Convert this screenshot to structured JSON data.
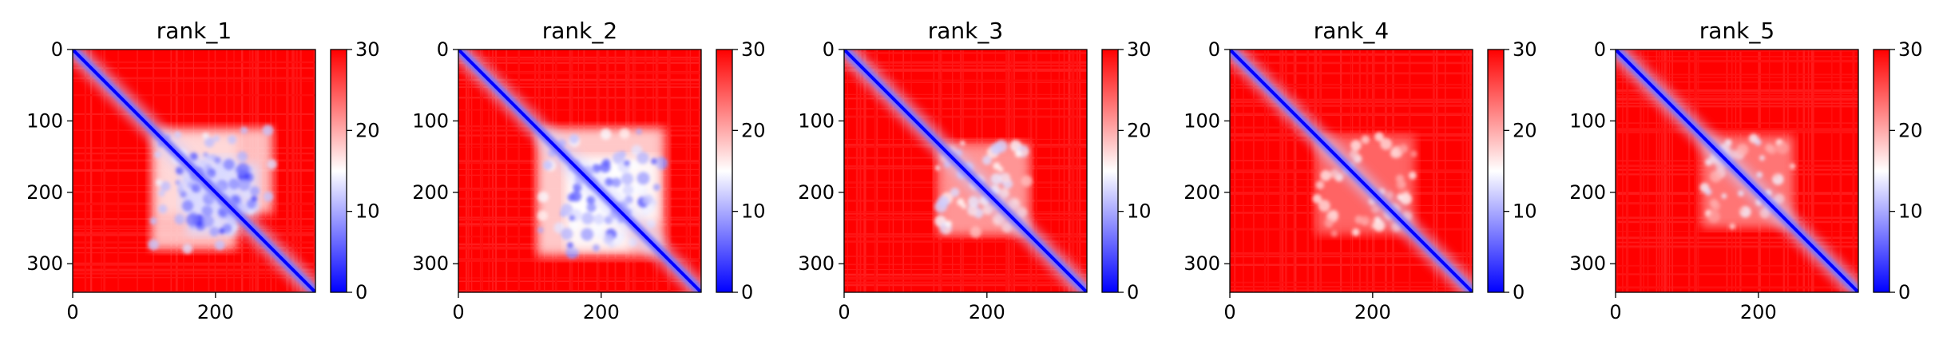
{
  "chart_data": [
    {
      "type": "heatmap",
      "title": "rank_1",
      "xlabel": "",
      "ylabel": "",
      "xlim": [
        0,
        340
      ],
      "ylim": [
        340,
        0
      ],
      "xticks": [
        0,
        200
      ],
      "yticks": [
        0,
        100,
        200,
        300
      ],
      "colorbar": {
        "min": 0,
        "max": 30,
        "ticks": [
          0,
          10,
          20,
          30
        ]
      },
      "colormap": [
        "#0000ff",
        "#ffffff",
        "#ff0000"
      ],
      "diagonal_band": true,
      "low_distance_blocks": [
        {
          "x": [
            120,
            280
          ],
          "y": [
            110,
            230
          ],
          "value": 11
        },
        {
          "x": [
            150,
            260
          ],
          "y": [
            160,
            230
          ],
          "value": 7
        }
      ]
    },
    {
      "type": "heatmap",
      "title": "rank_2",
      "xlabel": "",
      "ylabel": "",
      "xlim": [
        0,
        340
      ],
      "ylim": [
        340,
        0
      ],
      "xticks": [
        0,
        200
      ],
      "yticks": [
        0,
        100,
        200,
        300
      ],
      "colorbar": {
        "min": 0,
        "max": 30,
        "ticks": [
          0,
          10,
          20,
          30
        ]
      },
      "colormap": [
        "#0000ff",
        "#ffffff",
        "#ff0000"
      ],
      "diagonal_band": true,
      "low_distance_blocks": [
        {
          "x": [
            110,
            290
          ],
          "y": [
            110,
            280
          ],
          "value": 12
        },
        {
          "x": [
            150,
            280
          ],
          "y": [
            150,
            240
          ],
          "value": 9
        }
      ]
    },
    {
      "type": "heatmap",
      "title": "rank_3",
      "xlabel": "",
      "ylabel": "",
      "xlim": [
        0,
        340
      ],
      "ylim": [
        340,
        0
      ],
      "xticks": [
        0,
        200
      ],
      "yticks": [
        0,
        100,
        200,
        300
      ],
      "colorbar": {
        "min": 0,
        "max": 30,
        "ticks": [
          0,
          10,
          20,
          30
        ]
      },
      "colormap": [
        "#0000ff",
        "#ffffff",
        "#ff0000"
      ],
      "diagonal_band": true,
      "low_distance_blocks": [
        {
          "x": [
            130,
            260
          ],
          "y": [
            140,
            260
          ],
          "value": 15
        }
      ]
    },
    {
      "type": "heatmap",
      "title": "rank_4",
      "xlabel": "",
      "ylabel": "",
      "xlim": [
        0,
        340
      ],
      "ylim": [
        340,
        0
      ],
      "xticks": [
        0,
        200
      ],
      "yticks": [
        0,
        100,
        200,
        300
      ],
      "colorbar": {
        "min": 0,
        "max": 30,
        "ticks": [
          0,
          10,
          20,
          30
        ]
      },
      "colormap": [
        "#0000ff",
        "#ffffff",
        "#ff0000"
      ],
      "diagonal_band": true,
      "low_distance_blocks": [
        {
          "x": [
            120,
            260
          ],
          "y": [
            120,
            250
          ],
          "value": 18
        }
      ]
    },
    {
      "type": "heatmap",
      "title": "rank_5",
      "xlabel": "",
      "ylabel": "",
      "xlim": [
        0,
        340
      ],
      "ylim": [
        340,
        0
      ],
      "xticks": [
        0,
        200
      ],
      "yticks": [
        0,
        100,
        200,
        300
      ],
      "colorbar": {
        "min": 0,
        "max": 30,
        "ticks": [
          0,
          10,
          20,
          30
        ]
      },
      "colormap": [
        "#0000ff",
        "#ffffff",
        "#ff0000"
      ],
      "diagonal_band": true,
      "low_distance_blocks": [
        {
          "x": [
            120,
            250
          ],
          "y": [
            120,
            250
          ],
          "value": 17
        }
      ]
    }
  ]
}
